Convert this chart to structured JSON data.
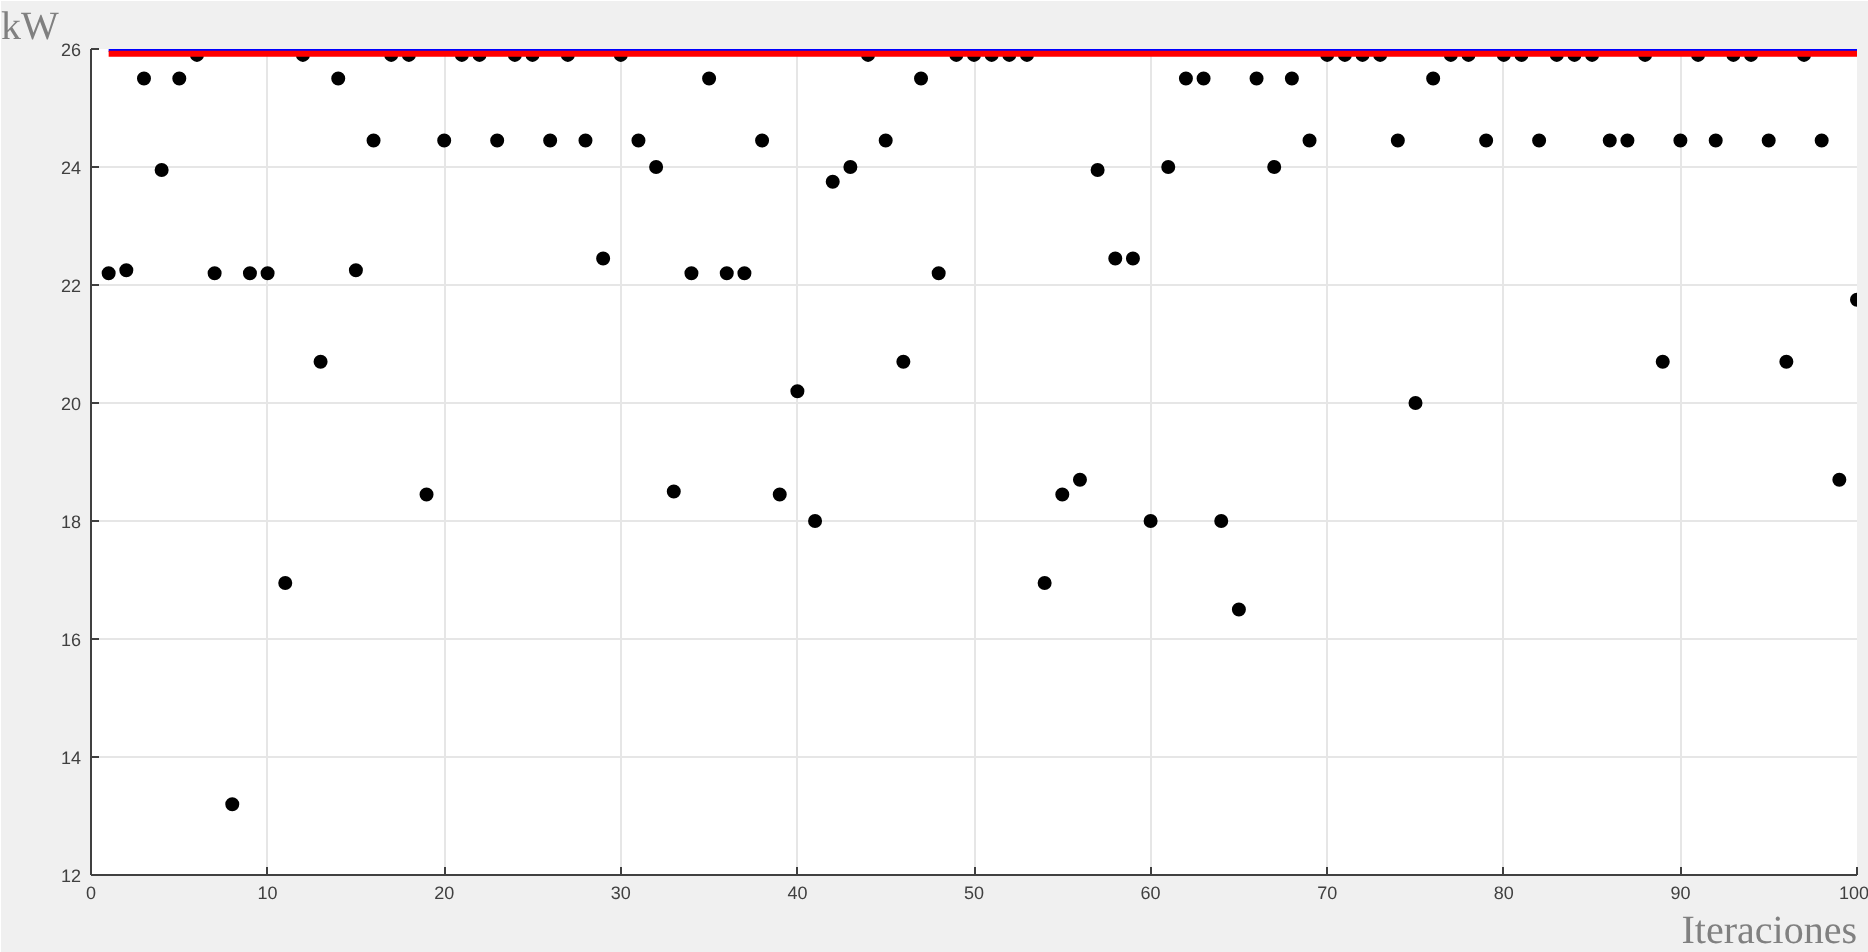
{
  "chart_data": {
    "type": "scatter",
    "xlabel": "Iteraciones",
    "ylabel": "kW",
    "xlim": [
      0,
      100
    ],
    "ylim": [
      12,
      26
    ],
    "xticks": [
      0,
      10,
      20,
      30,
      40,
      50,
      60,
      70,
      80,
      90,
      100
    ],
    "yticks": [
      12,
      14,
      16,
      18,
      20,
      22,
      24,
      26
    ],
    "grid": true,
    "series": [
      {
        "marker": "circle",
        "color": "#000000",
        "x": [
          1,
          2,
          3,
          4,
          5,
          6,
          7,
          8,
          9,
          10,
          11,
          12,
          13,
          14,
          15,
          16,
          17,
          18,
          19,
          20,
          21,
          22,
          23,
          24,
          25,
          26,
          27,
          28,
          29,
          30,
          31,
          32,
          33,
          34,
          35,
          36,
          37,
          38,
          39,
          40,
          41,
          42,
          43,
          44,
          45,
          46,
          47,
          48,
          49,
          50,
          51,
          52,
          53,
          54,
          55,
          56,
          57,
          58,
          59,
          60,
          61,
          62,
          63,
          64,
          65,
          66,
          67,
          68,
          69,
          70,
          71,
          72,
          73,
          74,
          75,
          76,
          77,
          78,
          79,
          80,
          81,
          82,
          83,
          84,
          85,
          86,
          87,
          88,
          89,
          90,
          91,
          92,
          93,
          94,
          95,
          96,
          97,
          98,
          99,
          100
        ],
        "values": [
          22.2,
          22.25,
          25.5,
          23.95,
          25.5,
          25.9,
          22.2,
          13.2,
          22.2,
          22.2,
          16.95,
          25.9,
          20.7,
          25.5,
          22.25,
          24.45,
          25.9,
          25.9,
          18.45,
          24.45,
          25.9,
          25.9,
          24.45,
          25.9,
          25.9,
          24.45,
          25.9,
          24.45,
          22.45,
          25.9,
          24.45,
          24.0,
          18.5,
          22.2,
          25.5,
          22.2,
          22.2,
          24.45,
          18.45,
          20.2,
          18.0,
          23.75,
          24.0,
          25.9,
          24.45,
          20.7,
          25.5,
          22.2,
          25.9,
          25.9,
          25.9,
          25.9,
          25.9,
          16.95,
          18.45,
          18.7,
          23.95,
          22.45,
          22.45,
          18.0,
          24.0,
          25.5,
          25.5,
          18.0,
          16.5,
          25.5,
          24.0,
          25.5,
          24.45,
          25.9,
          25.9,
          25.9,
          25.9,
          24.45,
          20.0,
          25.5,
          25.9,
          25.9,
          24.45,
          25.9,
          25.9,
          24.45,
          25.9,
          25.9,
          25.9,
          24.45,
          24.45,
          25.9,
          20.7,
          24.45,
          25.9,
          24.45,
          25.9,
          25.9,
          24.45,
          20.7,
          25.9,
          24.45,
          18.7,
          21.75
        ]
      },
      {
        "type": "line",
        "color": "#0000ff",
        "x": [
          1,
          100
        ],
        "values": [
          26.0,
          26.0
        ]
      },
      {
        "type": "line",
        "color": "#ff0000",
        "x": [
          1,
          100
        ],
        "values": [
          25.92,
          25.92
        ]
      }
    ]
  }
}
